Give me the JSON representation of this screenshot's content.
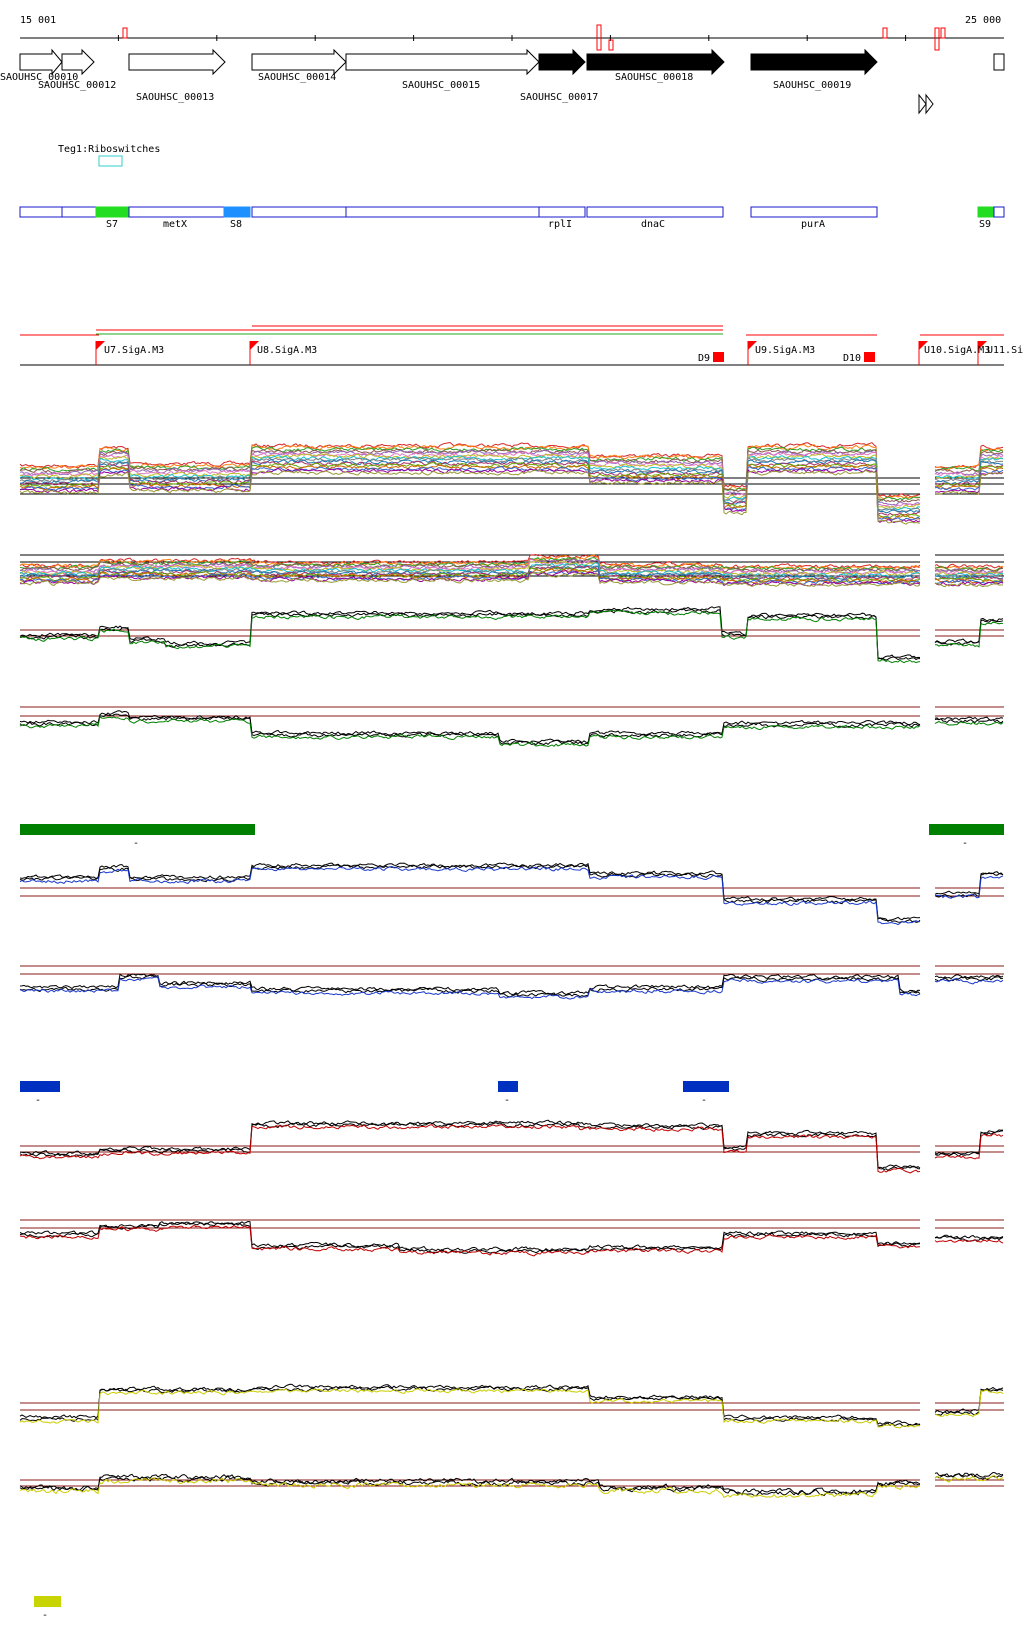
{
  "ruler": {
    "start_label": "15 001",
    "end_label": "25 000"
  },
  "genes": [
    {
      "id": "SAOUHSC_00010",
      "filled": false
    },
    {
      "id": "SAOUHSC_00012",
      "filled": false
    },
    {
      "id": "SAOUHSC_00013",
      "filled": false
    },
    {
      "id": "SAOUHSC_00014",
      "filled": false
    },
    {
      "id": "SAOUHSC_00015",
      "filled": false
    },
    {
      "id": "SAOUHSC_00017",
      "filled": true
    },
    {
      "id": "SAOUHSC_00018",
      "filled": true
    },
    {
      "id": "SAOUHSC_00019",
      "filled": true
    }
  ],
  "riboswitch_track": {
    "label": "Teg1:Riboswitches"
  },
  "features": [
    {
      "label": "S7",
      "kind": "green"
    },
    {
      "label": "metX",
      "kind": "outline"
    },
    {
      "label": "S8",
      "kind": "blue"
    },
    {
      "label": "rplI",
      "kind": "outline"
    },
    {
      "label": "dnaC",
      "kind": "outline"
    },
    {
      "label": "purA",
      "kind": "outline"
    },
    {
      "label": "S9",
      "kind": "green"
    }
  ],
  "promoters": [
    {
      "label": "U7.SigA.M3"
    },
    {
      "label": "U8.SigA.M3"
    },
    {
      "label": "D9"
    },
    {
      "label": "U9.SigA.M3"
    },
    {
      "label": "D10"
    },
    {
      "label": "U10.SigA.M3"
    },
    {
      "label": "U11.Si"
    }
  ],
  "colors": {
    "gene_filled": "#000000",
    "feature_outline": "#1a1acc",
    "feature_green": "#22dd22",
    "feature_blue": "#1e90ff",
    "promoter_red": "#ff0000",
    "riboswitch": "#33cccc",
    "track_green": "#008000",
    "track_blue": "#1a3acc",
    "track_red": "#c00000",
    "track_yellow": "#cccc00",
    "threshold_line": "#8b1a1a",
    "expression_bar_green": "#008000",
    "expression_bar_blue": "#0030c0",
    "expression_bar_yellow": "#c8d400"
  },
  "expression_bar_label": "-"
}
